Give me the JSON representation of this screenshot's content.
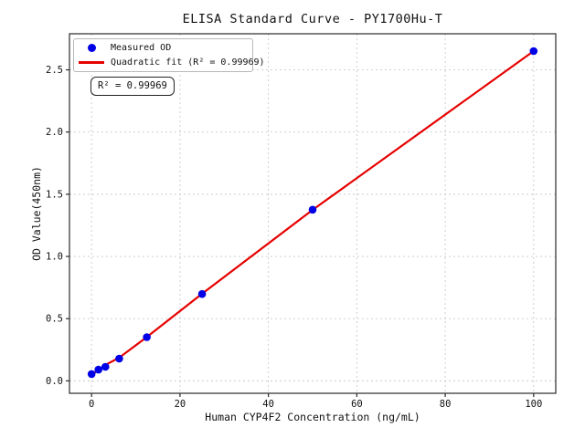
{
  "figure": {
    "annotation": {
      "text": "R² = 0.99969"
    }
  },
  "chart_data": {
    "type": "scatter",
    "title": "ELISA Standard Curve - PY1700Hu-T",
    "xlabel": "Human CYP4F2 Concentration (ng/mL)",
    "ylabel": "OD Value(450nm)",
    "xlim": [
      -5,
      105
    ],
    "ylim": [
      -0.1,
      2.79
    ],
    "xticks": [
      0,
      20,
      40,
      60,
      80,
      100
    ],
    "xtick_labels": [
      "0",
      "20",
      "40",
      "60",
      "80",
      "100"
    ],
    "yticks": [
      0.0,
      0.5,
      1.0,
      1.5,
      2.0,
      2.5
    ],
    "ytick_labels": [
      "0.0",
      "0.5",
      "1.0",
      "1.5",
      "2.0",
      "2.5"
    ],
    "grid": true,
    "legend_position": "upper left",
    "r_squared": 0.99969,
    "series": [
      {
        "name": "Measured OD",
        "type": "scatter",
        "color": "#0000e6",
        "x": [
          0,
          1.5625,
          3.125,
          6.25,
          12.5,
          25,
          50,
          100
        ],
        "y": [
          0.055,
          0.09,
          0.113,
          0.179,
          0.351,
          0.698,
          1.376,
          2.651
        ]
      },
      {
        "name": "Quadratic fit (R² = 0.99969)",
        "type": "line",
        "color": "#e60000",
        "x": [
          0,
          1.5625,
          3.125,
          6.25,
          12.5,
          25,
          50,
          100
        ],
        "y": [
          0.048,
          0.088,
          0.128,
          0.186,
          0.352,
          0.7,
          1.374,
          2.651
        ]
      }
    ]
  }
}
